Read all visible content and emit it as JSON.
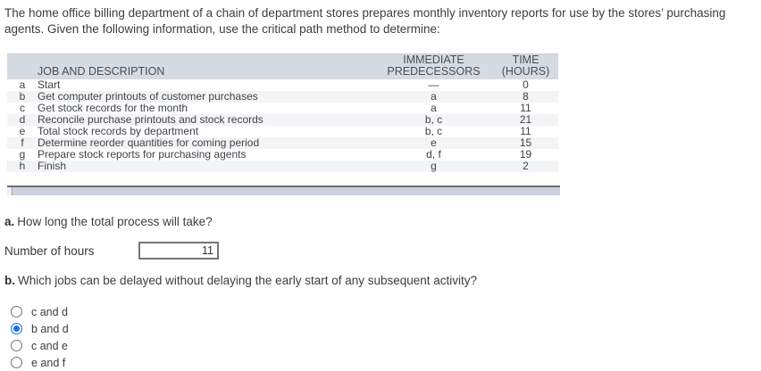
{
  "intro": "The home office billing department of a chain of department stores prepares monthly inventory reports for use by the stores’ purchasing agents. Given the following information, use the critical path method to determine:",
  "table": {
    "headers": {
      "job": "JOB AND DESCRIPTION",
      "pred_line1": "IMMEDIATE",
      "pred_line2": "PREDECESSORS",
      "time_line1": "TIME",
      "time_line2": "(HOURS)"
    },
    "rows": [
      {
        "job": "a",
        "description": "Start",
        "predecessors": "—",
        "time": "0"
      },
      {
        "job": "b",
        "description": "Get computer printouts of customer purchases",
        "predecessors": "a",
        "time": "8"
      },
      {
        "job": "c",
        "description": "Get stock records for the month",
        "predecessors": "a",
        "time": "11"
      },
      {
        "job": "d",
        "description": "Reconcile purchase printouts and stock records",
        "predecessors": "b, c",
        "time": "21"
      },
      {
        "job": "e",
        "description": "Total stock records by department",
        "predecessors": "b, c",
        "time": "11"
      },
      {
        "job": "f",
        "description": "Determine reorder quantities for coming period",
        "predecessors": "e",
        "time": "15"
      },
      {
        "job": "g",
        "description": "Prepare stock reports for purchasing agents",
        "predecessors": "d, f",
        "time": "19"
      },
      {
        "job": "h",
        "description": "Finish",
        "predecessors": "g",
        "time": "2"
      }
    ]
  },
  "question_a": {
    "label": "a.",
    "text": "How long the total process will take?",
    "input_label": "Number of hours",
    "input_value": "11"
  },
  "question_b": {
    "label": "b.",
    "text": "Which jobs can be delayed without delaying the early start of any subsequent activity?",
    "options": [
      {
        "label": "c and d",
        "selected": false
      },
      {
        "label": "b and d",
        "selected": true
      },
      {
        "label": "c and e",
        "selected": false
      },
      {
        "label": "e and f",
        "selected": false
      }
    ]
  },
  "colors": {
    "table_header_bg": "#d6dae3",
    "row_stripe_bg": "#f3f4f6",
    "scrollbar_bg": "#cdd1dd",
    "radio_selected": "#1a73e8",
    "input_border": "#767676"
  }
}
